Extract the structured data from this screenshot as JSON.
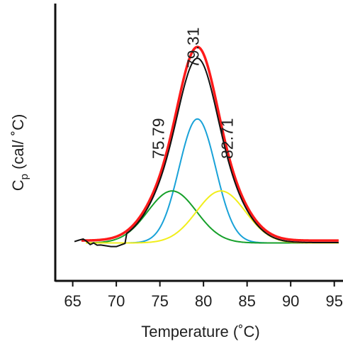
{
  "chart_data": {
    "type": "line",
    "xlabel": "Temperature (˚C)",
    "ylabel_main": "C",
    "ylabel_sub": "p",
    "ylabel_rest": " (cal/ ˚C)",
    "xlim": [
      63,
      96
    ],
    "ylim": [
      0,
      1
    ],
    "xticks": [
      65,
      70,
      75,
      80,
      85,
      90,
      95
    ],
    "yticks_shown": false,
    "peak_labels": [
      {
        "text": "75.79",
        "x": 75.79
      },
      {
        "text": "79.31",
        "x": 79.31
      },
      {
        "text": "82.71",
        "x": 82.71
      }
    ],
    "components": [
      {
        "color": "#19a2d8",
        "center": 79.3,
        "height": 0.62,
        "width": 2.1
      },
      {
        "color": "#16a02a",
        "center": 76.4,
        "height": 0.26,
        "width": 2.8
      },
      {
        "color": "#f1ee1c",
        "center": 82.0,
        "height": 0.26,
        "width": 2.8
      }
    ],
    "baseline": 0.02,
    "total_color": "#ff1a1a",
    "data_color": "#111111"
  }
}
